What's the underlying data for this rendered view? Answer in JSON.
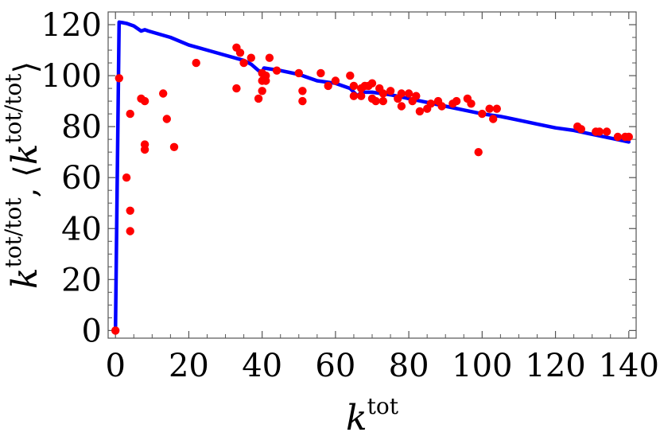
{
  "chart_data": {
    "type": "scatter",
    "xlabel": {
      "base": "k",
      "sup": "tot"
    },
    "ylabel": {
      "base": "k",
      "sup": "tot/tot",
      "sep": ", ",
      "open": "⟨",
      "close": "⟩"
    },
    "xlim": [
      -2,
      142
    ],
    "ylim": [
      -3,
      125
    ],
    "xticks": [
      0,
      20,
      40,
      60,
      80,
      100,
      120,
      140
    ],
    "yticks": [
      0,
      20,
      40,
      60,
      80,
      100,
      120
    ],
    "grid": false,
    "legend": "none",
    "colors": {
      "points": "#ff0000",
      "line": "#0000ff",
      "frame": "#555555"
    },
    "series": [
      {
        "kind": "points",
        "points": [
          [
            0,
            0
          ],
          [
            1,
            99
          ],
          [
            3,
            60
          ],
          [
            4,
            85
          ],
          [
            4,
            47
          ],
          [
            4,
            39
          ],
          [
            7,
            91
          ],
          [
            8,
            90
          ],
          [
            8,
            73
          ],
          [
            8,
            71
          ],
          [
            13,
            93
          ],
          [
            14,
            83
          ],
          [
            16,
            72
          ],
          [
            22,
            105
          ],
          [
            33,
            111
          ],
          [
            34,
            109
          ],
          [
            33,
            95
          ],
          [
            35,
            105
          ],
          [
            37,
            107
          ],
          [
            39,
            91
          ],
          [
            40,
            94
          ],
          [
            40,
            98
          ],
          [
            40,
            101
          ],
          [
            41,
            100
          ],
          [
            41,
            98
          ],
          [
            42,
            107
          ],
          [
            44,
            102
          ],
          [
            50,
            101
          ],
          [
            51,
            94
          ],
          [
            51,
            90
          ],
          [
            56,
            101
          ],
          [
            58,
            96
          ],
          [
            60,
            98
          ],
          [
            64,
            100
          ],
          [
            65,
            96
          ],
          [
            65,
            92
          ],
          [
            67,
            92
          ],
          [
            67,
            95
          ],
          [
            68,
            96
          ],
          [
            69,
            96
          ],
          [
            70,
            97
          ],
          [
            70,
            91
          ],
          [
            71,
            90
          ],
          [
            72,
            95
          ],
          [
            73,
            93
          ],
          [
            73,
            90
          ],
          [
            75,
            94
          ],
          [
            77,
            91
          ],
          [
            78,
            88
          ],
          [
            78,
            93
          ],
          [
            80,
            93
          ],
          [
            81,
            90
          ],
          [
            82,
            92
          ],
          [
            83,
            86
          ],
          [
            85,
            87
          ],
          [
            86,
            89
          ],
          [
            88,
            90
          ],
          [
            89,
            88
          ],
          [
            92,
            89
          ],
          [
            93,
            90
          ],
          [
            96,
            91
          ],
          [
            97,
            89
          ],
          [
            99,
            70
          ],
          [
            100,
            85
          ],
          [
            102,
            87
          ],
          [
            103,
            83
          ],
          [
            104,
            87
          ],
          [
            126,
            80
          ],
          [
            127,
            79
          ],
          [
            131,
            78
          ],
          [
            132,
            78
          ],
          [
            134,
            78
          ],
          [
            137,
            76
          ],
          [
            139,
            76
          ],
          [
            140,
            76
          ]
        ]
      },
      {
        "kind": "line",
        "points": [
          [
            0,
            0
          ],
          [
            1,
            121
          ],
          [
            2,
            120.8
          ],
          [
            3,
            120.5
          ],
          [
            5,
            119.5
          ],
          [
            7,
            117.5
          ],
          [
            8,
            118
          ],
          [
            9,
            117.5
          ],
          [
            15,
            115
          ],
          [
            20,
            112
          ],
          [
            25,
            110
          ],
          [
            30,
            108
          ],
          [
            35,
            106
          ],
          [
            37,
            104.5
          ],
          [
            39,
            102
          ],
          [
            40,
            101.5
          ],
          [
            40.5,
            103
          ],
          [
            45,
            102
          ],
          [
            50,
            100.5
          ],
          [
            55,
            98
          ],
          [
            60,
            97
          ],
          [
            64,
            95
          ],
          [
            66,
            92
          ],
          [
            67,
            93.5
          ],
          [
            70,
            93.5
          ],
          [
            75,
            92.5
          ],
          [
            80,
            91
          ],
          [
            85,
            89.5
          ],
          [
            90,
            88
          ],
          [
            95,
            86.5
          ],
          [
            100,
            85
          ],
          [
            105,
            84
          ],
          [
            110,
            82.5
          ],
          [
            115,
            81
          ],
          [
            120,
            79.5
          ],
          [
            125,
            78.5
          ],
          [
            130,
            77
          ],
          [
            135,
            75.5
          ],
          [
            140,
            74
          ]
        ]
      }
    ]
  }
}
